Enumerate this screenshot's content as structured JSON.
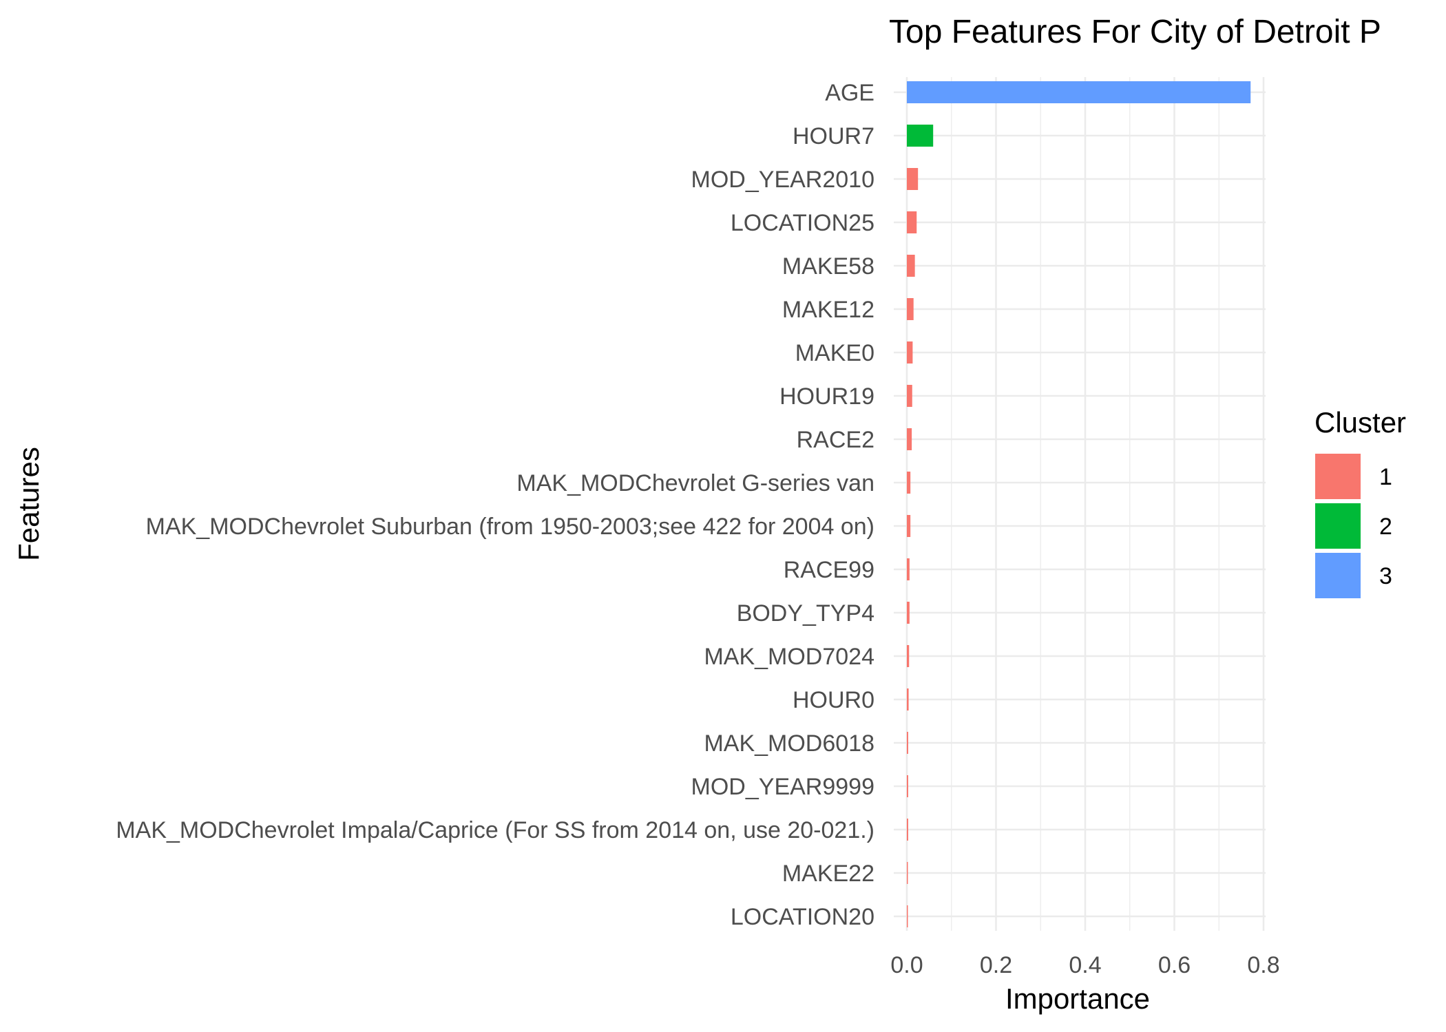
{
  "chart_data": {
    "type": "bar",
    "orientation": "horizontal",
    "title": "Top Features For City of Detroit P",
    "xlabel": "Importance",
    "ylabel": "Features",
    "xlim": [
      0,
      0.8
    ],
    "xticks": [
      "0.0",
      "0.2",
      "0.4",
      "0.6",
      "0.8"
    ],
    "grid": true,
    "legend": {
      "title": "Cluster",
      "position": "right",
      "entries": [
        {
          "label": "1",
          "color": "#F8766D"
        },
        {
          "label": "2",
          "color": "#00BA38"
        },
        {
          "label": "3",
          "color": "#619CFF"
        }
      ]
    },
    "categories": [
      "AGE",
      "HOUR7",
      "MOD_YEAR2010",
      "LOCATION25",
      "MAKE58",
      "MAKE12",
      "MAKE0",
      "HOUR19",
      "RACE2",
      "MAK_MODChevrolet G-series van",
      "MAK_MODChevrolet Suburban (from 1950-2003;see 422 for 2004 on)",
      "RACE99",
      "BODY_TYP4",
      "MAK_MOD7024",
      "HOUR0",
      "MAK_MOD6018",
      "MOD_YEAR9999",
      "MAK_MODChevrolet Impala/Caprice (For SS from 2014 on, use 20-021.)",
      "MAKE22",
      "LOCATION20"
    ],
    "values": [
      0.771,
      0.059,
      0.025,
      0.022,
      0.018,
      0.015,
      0.013,
      0.012,
      0.011,
      0.008,
      0.008,
      0.006,
      0.006,
      0.005,
      0.004,
      0.003,
      0.003,
      0.003,
      0.002,
      0.002
    ],
    "clusters": [
      "3",
      "2",
      "1",
      "1",
      "1",
      "1",
      "1",
      "1",
      "1",
      "1",
      "1",
      "1",
      "1",
      "1",
      "1",
      "1",
      "1",
      "1",
      "1",
      "1"
    ]
  }
}
